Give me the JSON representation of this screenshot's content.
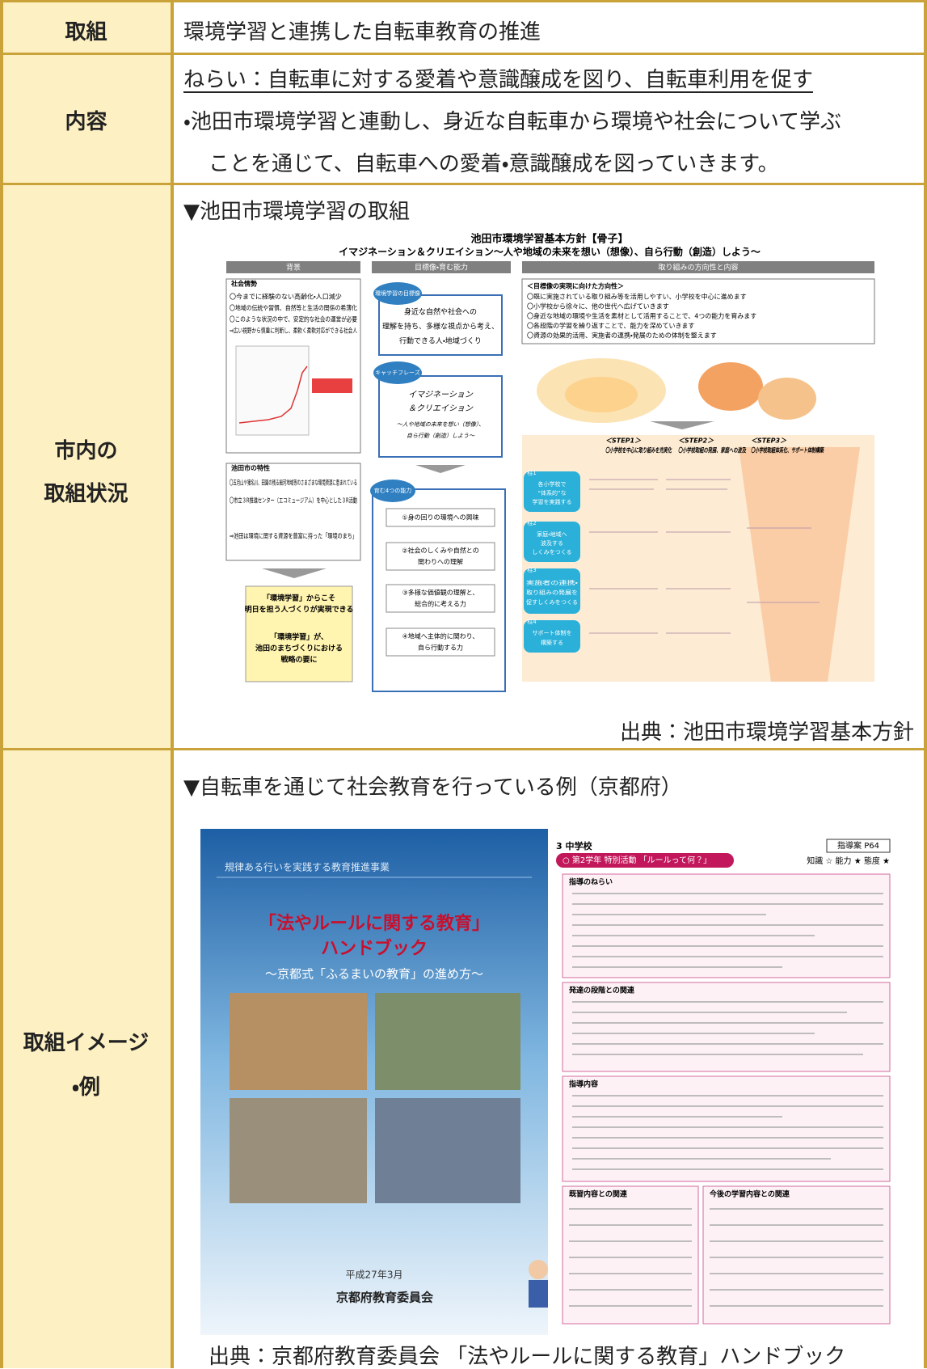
{
  "rows": [
    {
      "label": [
        "取組"
      ],
      "text": "環境学習と連携した自転車教育の推進"
    },
    {
      "label": [
        "内容"
      ],
      "aim": "ねらい：自転車に対する愛着や意識醸成を図り、自転車利用を促す",
      "lines": [
        "・池田市環境学習と連動し、身近な自転車から環境や社会について学ぶ",
        "ことを通じて、自転車への愛着・意識醸成を図っていきます。"
      ]
    },
    {
      "label": [
        "市内の",
        "取組状況"
      ],
      "heading": "▼池田市環境学習の取組",
      "figure": {
        "title": "池田市環境学習基本方針【骨子】",
        "subtitle": "イマジネーション＆クリエイション～人や地域の未来を想い（想像）、自ら行動（創造）しよう～",
        "columns": [
          "背景",
          "目標像・育む能力",
          "取り組みの方向性と内容"
        ],
        "background": {
          "heading": "社会情勢",
          "items": [
            "〇今までに経験のない高齢化・人口減少",
            "〇地域の伝統や習慣、自然等と生活の関係の希薄化",
            "〇このような状況の中で、安定的な社会の運営が必要",
            "⇒広い視野から慎重に判断し、柔軟く柔軟対応ができる社会人"
          ]
        },
        "features": {
          "heading": "池田市の特性",
          "items": [
            "〇五月山や猪名川、田園の残る細河地域等のさまざまな環境資源に恵まれている",
            "〇市立３R推進センター（エコミュージアム）を中心とした３R活動",
            "⇒池田は環境に関する資源を豊富に持った「環境のまち」"
          ]
        },
        "conclusion": [
          "「環境学習」からこそ",
          "明日を担う人づくりが実現できる",
          "「環境学習」が、",
          "池田のまちづくりにおける",
          "戦略の要に"
        ],
        "goal": {
          "tag": "環境学習の目標像",
          "lines": [
            "身近な自然や社会への",
            "理解を持ち、多様な視点から考え、",
            "行動できる人・地域づくり"
          ]
        },
        "catch": {
          "tag": "キャッチフレーズ",
          "lines": [
            "イマジネーション",
            "＆クリエイション",
            "～人や地域の未来を想い（想像）、",
            "自ら行動（創造）しよう～"
          ]
        },
        "abilities": {
          "tag": "育む4つの能力",
          "items": [
            [
              "①身の回りの環境への興味"
            ],
            [
              "②社会のしくみや自然との",
              "関わりへの理解"
            ],
            [
              "③多様な価値観の理解と、",
              "総合的に考える力"
            ],
            [
              "④地域へ主体的に関わり、",
              "自ら行動する力"
            ]
          ]
        },
        "direction": {
          "heading": "＜目標像の実現に向けた方向性＞",
          "items": [
            "〇既に実施されている取り組み等を活用しやすい、小学校を中心に進めます",
            "〇小学校から徐々に、他の世代へ広げていきます",
            "〇身近な地域の環境や生活を素材として活用することで、4つの能力を育みます",
            "〇各段階の学習を繰り返すことで、能力を深めていきます",
            "〇資源の効果的活用、実施者の連携・発展のための体制を整えます"
          ]
        },
        "steps": [
          [
            "＜STEP1＞",
            "〇小学校を中心に取り組みを充実化"
          ],
          [
            "＜STEP2＞",
            "〇小学校取組の発展、家庭への波及"
          ],
          [
            "＜STEP3＞",
            "〇小学校取組体系化、サポート体制構築"
          ]
        ],
        "pillars": [
          [
            "柱1",
            "各小学校で",
            "“体系的”な",
            "学習を実践する"
          ],
          [
            "柱2",
            "家庭・地域へ",
            "波及する",
            "しくみをつくる"
          ],
          [
            "柱3",
            "実施者の連携・",
            "取り組みの発展を",
            "促すしくみをつくる"
          ],
          [
            "柱4",
            "サポート体制を",
            "構築する"
          ]
        ]
      },
      "source": "出典：池田市環境学習基本方針"
    },
    {
      "label": [
        "取組イメージ",
        "・例"
      ],
      "heading": "▼自転車を通じて社会教育を行っている例（京都府）",
      "figure": {
        "cover": {
          "project": "規律ある行いを実践する教育推進事業",
          "title": "「法やルールに関する教育」",
          "subtitle": "ハンドブック",
          "tagline": "～京都式「ふるまいの教育」の進め方～",
          "date": "平成27年3月",
          "publisher": "京都府教育委員会"
        },
        "page": {
          "section": "3 中学校",
          "plan": "指導案 P64",
          "lesson": "○ 第2学年 特別活動 「ルールって何？」",
          "rating": "知識 ☆ 能力 ★ 態度 ★",
          "blocks": [
            "指導のねらい",
            "発達の段階との関連",
            "指導内容"
          ],
          "related": [
            "既習内容との関連",
            "今後の学習内容との関連"
          ]
        }
      },
      "source": "出典：京都府教育委員会 「法やルールに関する教育」ハンドブック"
    }
  ]
}
